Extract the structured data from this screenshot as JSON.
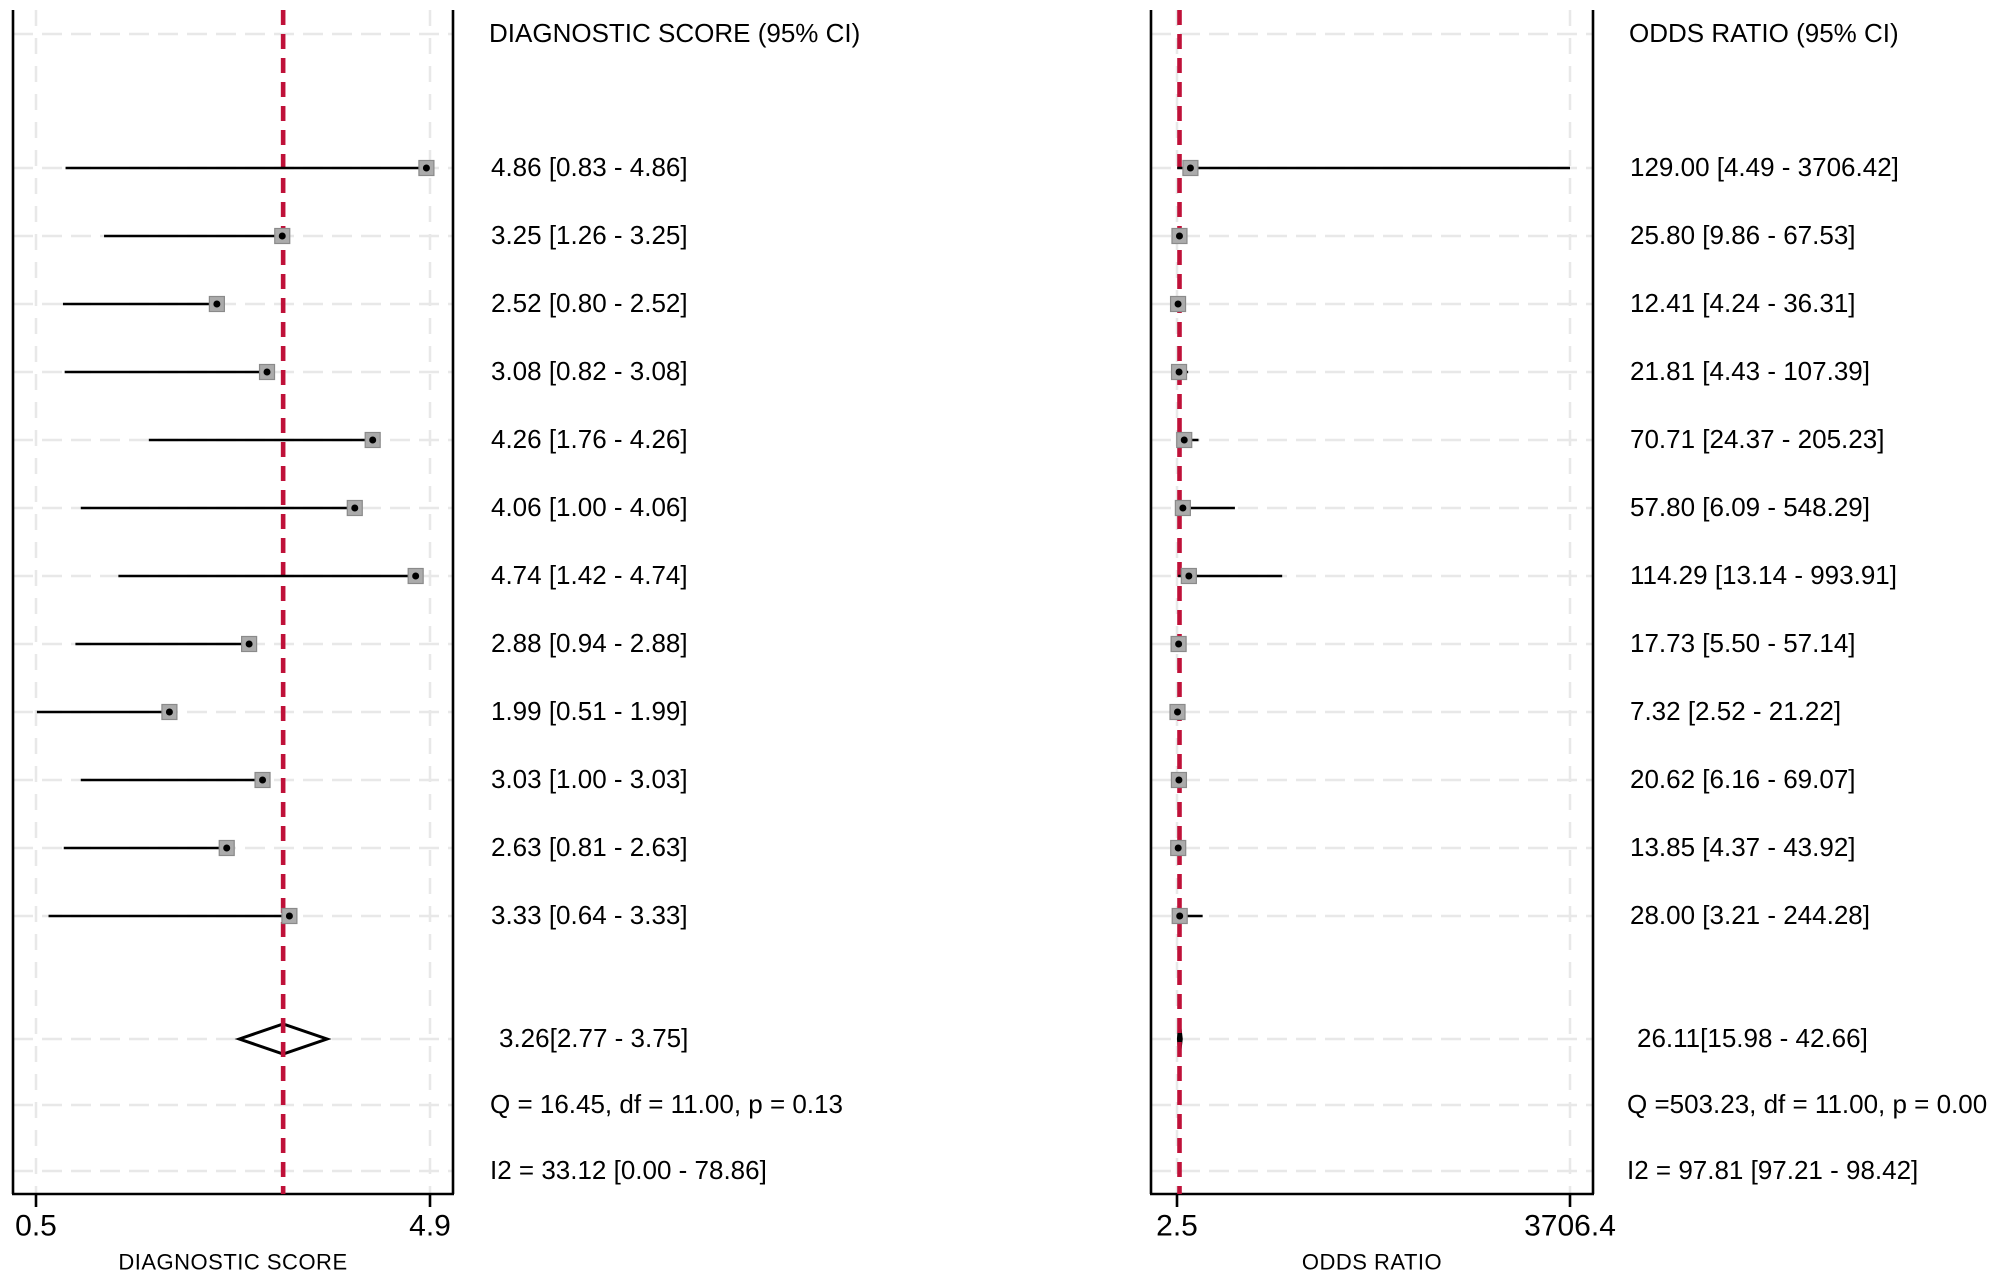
{
  "figure": {
    "kind": "meta-analysis forest plots (paired panels)",
    "background": "#ffffff"
  },
  "colors": {
    "ref_line": "#bf1139",
    "marker_fill": "#ababab",
    "marker_border": "#8a8a8a",
    "marker_dot": "#000000",
    "grid_line": "#e8e8e8",
    "axis_line": "#000000",
    "diamond_fill": "#ffffff",
    "diamond_stroke": "#000000",
    "text": "#000000"
  },
  "chart_data": [
    {
      "type": "forest",
      "panel": "diagnostic-score",
      "header": "DIAGNOSTIC SCORE (95% CI)",
      "xlabel": "DIAGNOSTIC SCORE",
      "axis": {
        "min": 0.5,
        "max": 4.9,
        "scale": "linear",
        "tick_labels": [
          "0.5",
          "4.9"
        ],
        "grid": "dashed"
      },
      "ref_line": {
        "value": 3.26,
        "style": "dashed"
      },
      "studies": [
        {
          "est": 4.86,
          "lo": 0.83,
          "hi": 4.86,
          "label": "4.86 [0.83 - 4.86]"
        },
        {
          "est": 3.25,
          "lo": 1.26,
          "hi": 3.25,
          "label": "3.25 [1.26 - 3.25]"
        },
        {
          "est": 2.52,
          "lo": 0.8,
          "hi": 2.52,
          "label": "2.52 [0.80 - 2.52]"
        },
        {
          "est": 3.08,
          "lo": 0.82,
          "hi": 3.08,
          "label": "3.08 [0.82 - 3.08]"
        },
        {
          "est": 4.26,
          "lo": 1.76,
          "hi": 4.26,
          "label": "4.26 [1.76 - 4.26]"
        },
        {
          "est": 4.06,
          "lo": 1.0,
          "hi": 4.06,
          "label": "4.06 [1.00 - 4.06]"
        },
        {
          "est": 4.74,
          "lo": 1.42,
          "hi": 4.74,
          "label": "4.74 [1.42 - 4.74]"
        },
        {
          "est": 2.88,
          "lo": 0.94,
          "hi": 2.88,
          "label": "2.88 [0.94 - 2.88]"
        },
        {
          "est": 1.99,
          "lo": 0.51,
          "hi": 1.99,
          "label": "1.99 [0.51 - 1.99]"
        },
        {
          "est": 3.03,
          "lo": 1.0,
          "hi": 3.03,
          "label": "3.03 [1.00 - 3.03]"
        },
        {
          "est": 2.63,
          "lo": 0.81,
          "hi": 2.63,
          "label": "2.63 [0.81 - 2.63]"
        },
        {
          "est": 3.33,
          "lo": 0.64,
          "hi": 3.33,
          "label": "3.33 [0.64 - 3.33]"
        }
      ],
      "pooled": {
        "est": 3.26,
        "lo": 2.77,
        "hi": 3.75,
        "label": "3.26[2.77 - 3.75]"
      },
      "heterogeneity": "Q = 16.45, df = 11.00, p =  0.13",
      "i_squared": "I2 = 33.12 [0.00 - 78.86]"
    },
    {
      "type": "forest",
      "panel": "odds-ratio",
      "header": "ODDS RATIO (95% CI)",
      "xlabel": "ODDS RATIO",
      "axis": {
        "min": 2.5,
        "max": 3706.4,
        "scale": "linear",
        "tick_labels": [
          "2.5",
          "3706.4"
        ],
        "grid": "dashed"
      },
      "ref_line": {
        "value": 26.11,
        "style": "dashed"
      },
      "studies": [
        {
          "est": 129.0,
          "lo": 4.49,
          "hi": 3706.42,
          "label": "129.00 [4.49 - 3706.42]"
        },
        {
          "est": 25.8,
          "lo": 9.86,
          "hi": 67.53,
          "label": "25.80 [9.86 - 67.53]"
        },
        {
          "est": 12.41,
          "lo": 4.24,
          "hi": 36.31,
          "label": "12.41 [4.24 - 36.31]"
        },
        {
          "est": 21.81,
          "lo": 4.43,
          "hi": 107.39,
          "label": "21.81 [4.43 - 107.39]"
        },
        {
          "est": 70.71,
          "lo": 24.37,
          "hi": 205.23,
          "label": "70.71 [24.37 - 205.23]"
        },
        {
          "est": 57.8,
          "lo": 6.09,
          "hi": 548.29,
          "label": "57.80 [6.09 - 548.29]"
        },
        {
          "est": 114.29,
          "lo": 13.14,
          "hi": 993.91,
          "label": "114.29 [13.14 - 993.91]"
        },
        {
          "est": 17.73,
          "lo": 5.5,
          "hi": 57.14,
          "label": "17.73 [5.50 - 57.14]"
        },
        {
          "est": 7.32,
          "lo": 2.52,
          "hi": 21.22,
          "label": "7.32 [2.52 - 21.22]"
        },
        {
          "est": 20.62,
          "lo": 6.16,
          "hi": 69.07,
          "label": "20.62 [6.16 - 69.07]"
        },
        {
          "est": 13.85,
          "lo": 4.37,
          "hi": 43.92,
          "label": "13.85 [4.37 - 43.92]"
        },
        {
          "est": 28.0,
          "lo": 3.21,
          "hi": 244.28,
          "label": "28.00 [3.21 - 244.28]"
        }
      ],
      "pooled": {
        "est": 26.11,
        "lo": 15.98,
        "hi": 42.66,
        "label": "26.11[15.98 - 42.66]"
      },
      "heterogeneity": "Q =503.23, df = 11.00, p =  0.00",
      "i_squared": "I2 = 97.81 [97.21 - 98.42]"
    }
  ]
}
